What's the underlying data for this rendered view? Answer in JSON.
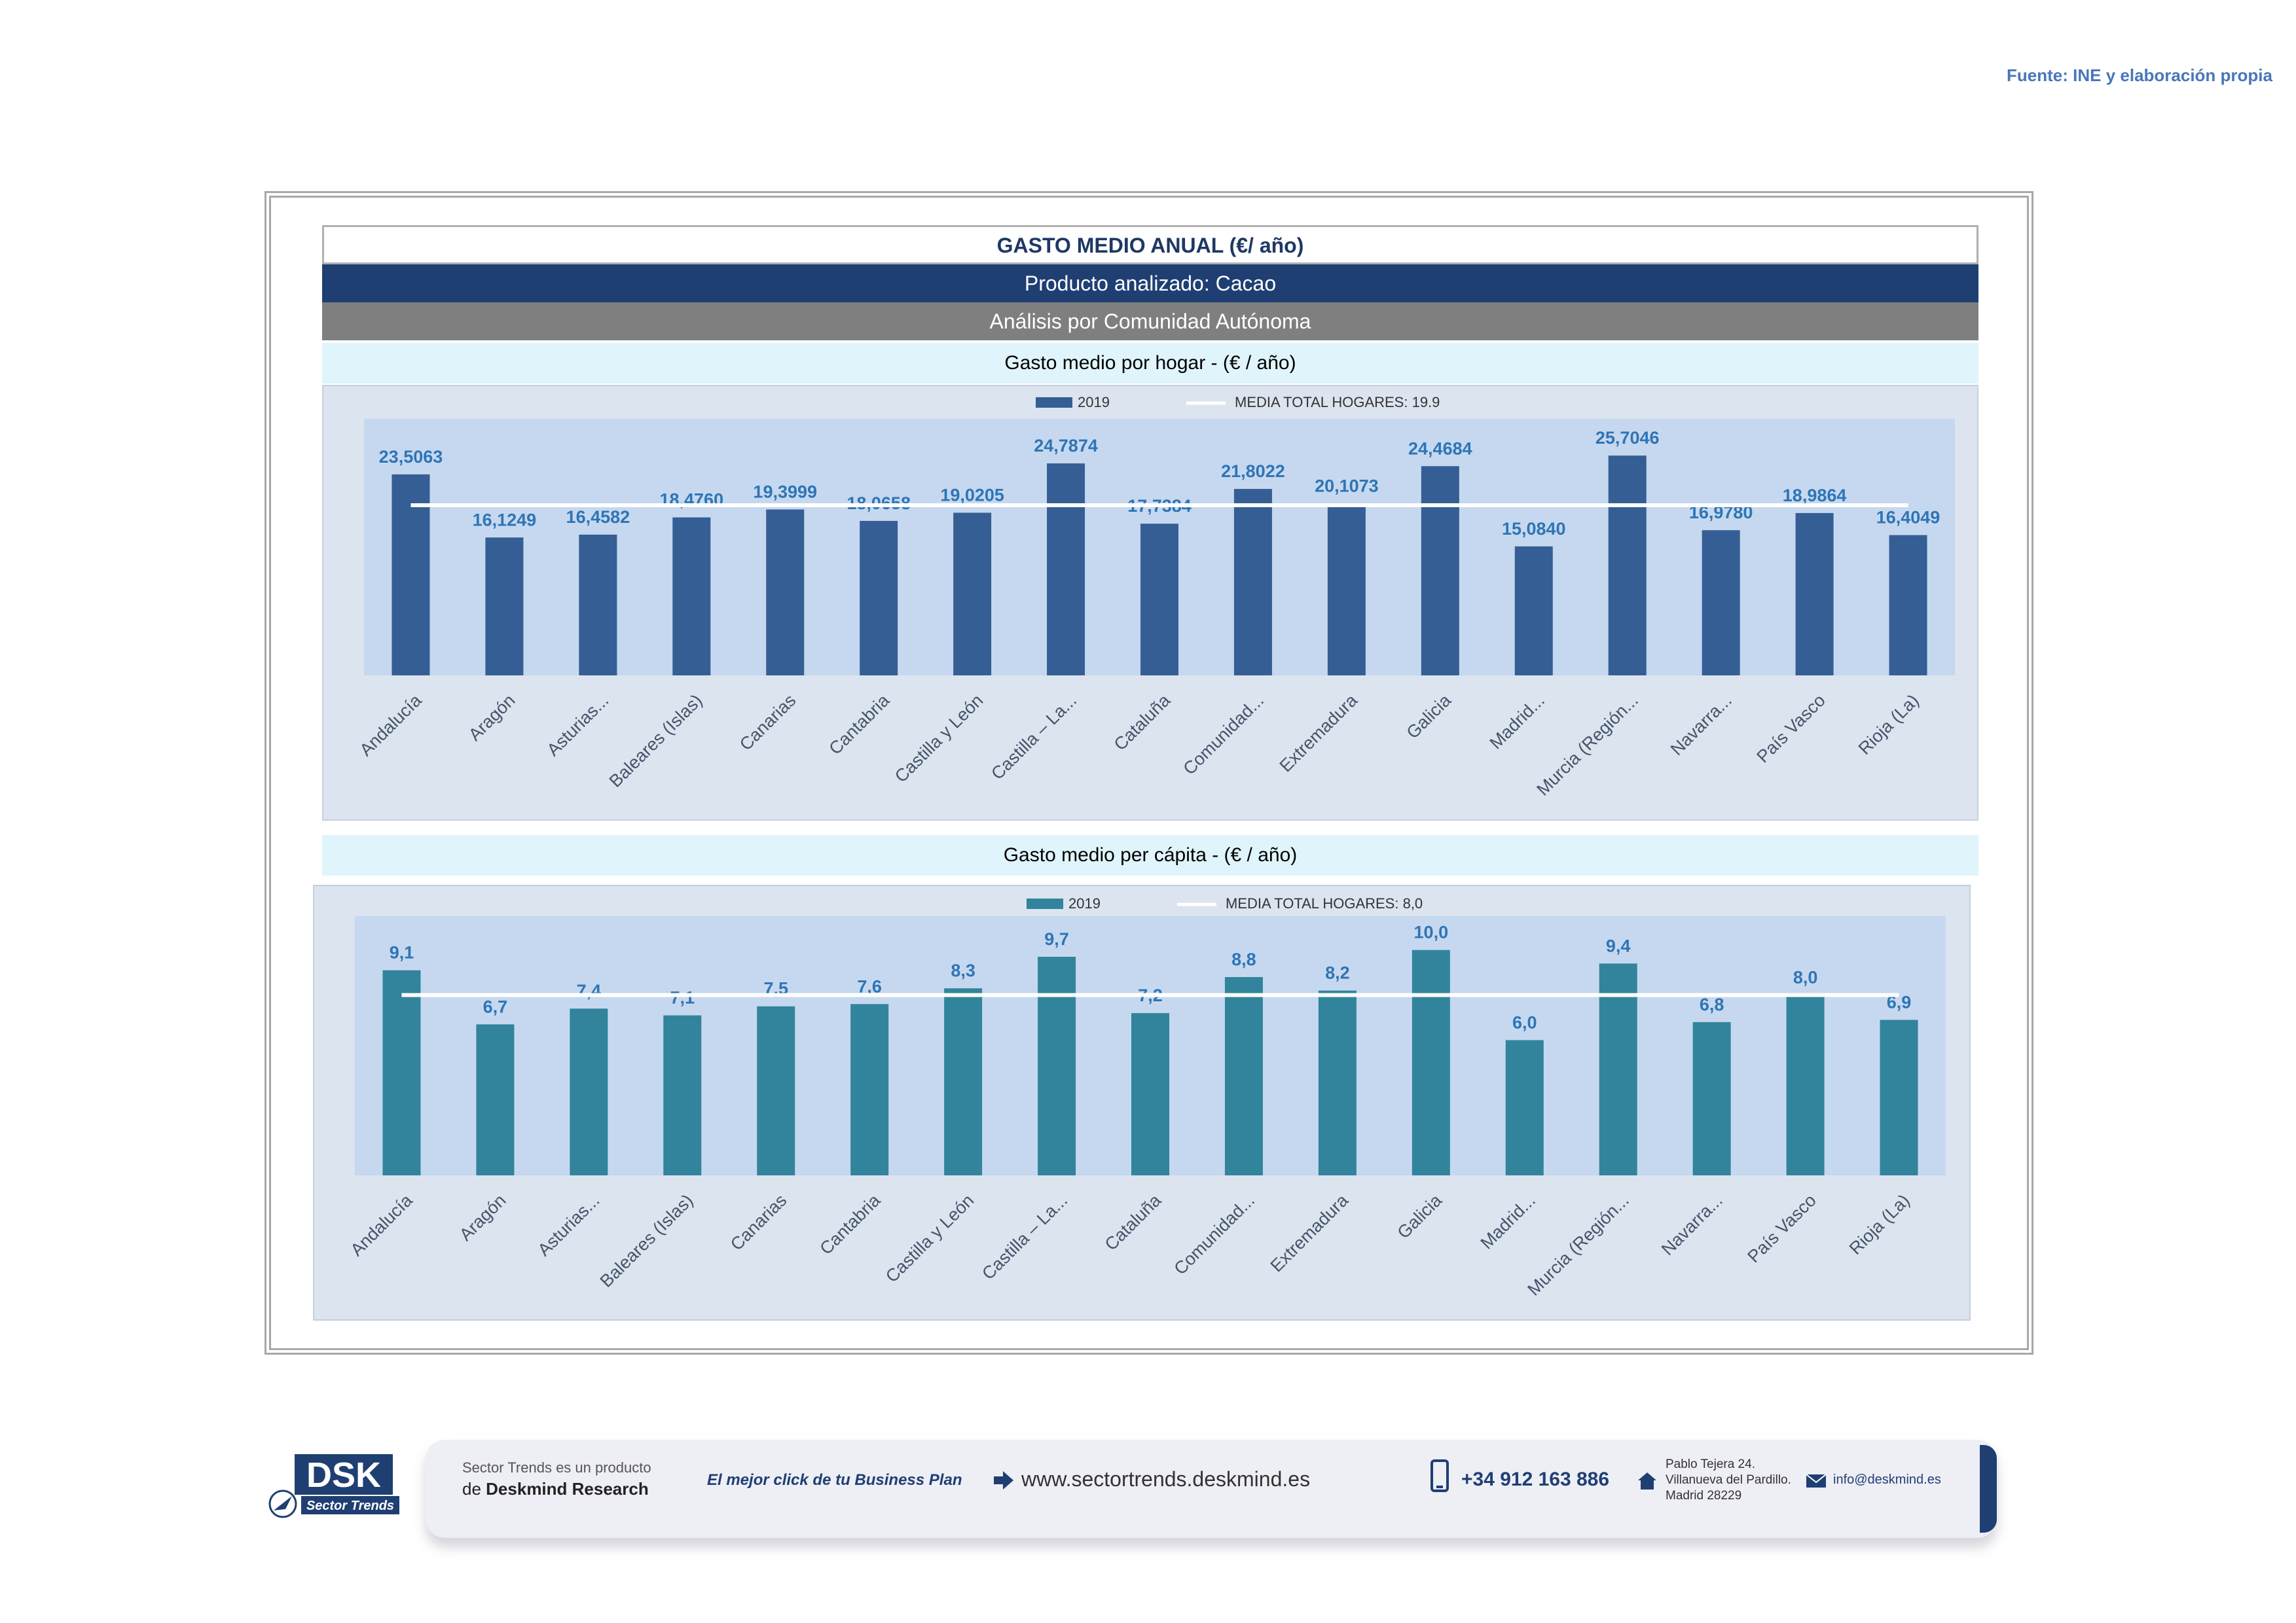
{
  "source": "Fuente: INE y elaboración propia",
  "header": {
    "title": "GASTO MEDIO ANUAL (€/ año)",
    "product": "Producto analizado: Cacao",
    "analysis": "Análisis por Comunidad Autónoma"
  },
  "colors": {
    "bar_hogar": "#355e94",
    "bar_capita": "#31849b",
    "label": "#2e75b6",
    "mean_line": "#ffffff"
  },
  "chart_data": [
    {
      "type": "bar",
      "title": "Gasto medio por hogar -  (€ / año)",
      "categories": [
        "Andalucía",
        "Aragón",
        "Asturias...",
        "Baleares (Islas)",
        "Canarias",
        "Cantabria",
        "Castilla y León",
        "Castilla – La...",
        "Cataluña",
        "Comunidad...",
        "Extremadura",
        "Galicia",
        "Madrid...",
        "Murcia (Región...",
        "Navarra...",
        "País Vasco",
        "Rioja (La)"
      ],
      "series": [
        {
          "name": "2019",
          "values": [
            23.5063,
            16.1249,
            16.4582,
            18.476,
            19.3999,
            18.0658,
            19.0205,
            24.7874,
            17.7384,
            21.8022,
            20.1073,
            24.4684,
            15.084,
            25.7046,
            16.978,
            18.9864,
            16.4049
          ]
        }
      ],
      "data_labels": [
        "23,5063",
        "16,1249",
        "16,4582",
        "18,4760",
        "19,3999",
        "18,0658",
        "19,0205",
        "24,7874",
        "17,7384",
        "21,8022",
        "20,1073",
        "24,4684",
        "15,0840",
        "25,7046",
        "16,9780",
        "18,9864",
        "16,4049"
      ],
      "legend": {
        "series": "2019",
        "mean": "MEDIA TOTAL  HOGARES:",
        "mean_value": "19.9"
      },
      "mean": 19.9,
      "ylim": [
        0,
        30
      ],
      "grid": false,
      "legend_position": "top"
    },
    {
      "type": "bar",
      "title": "Gasto medio per cápita -  (€ / año)",
      "categories": [
        "Andalucía",
        "Aragón",
        "Asturias...",
        "Baleares (Islas)",
        "Canarias",
        "Cantabria",
        "Castilla y León",
        "Castilla – La...",
        "Cataluña",
        "Comunidad...",
        "Extremadura",
        "Galicia",
        "Madrid...",
        "Murcia (Región...",
        "Navarra...",
        "País Vasco",
        "Rioja (La)"
      ],
      "series": [
        {
          "name": "2019",
          "values": [
            9.1,
            6.7,
            7.4,
            7.1,
            7.5,
            7.6,
            8.3,
            9.7,
            7.2,
            8.8,
            8.2,
            10.0,
            6.0,
            9.4,
            6.8,
            8.0,
            6.9
          ]
        }
      ],
      "data_labels": [
        "9,1",
        "6,7",
        "7,4",
        "7,1",
        "7,5",
        "7,6",
        "8,3",
        "9,7",
        "7,2",
        "8,8",
        "8,2",
        "10,0",
        "6,0",
        "9,4",
        "6,8",
        "8,0",
        "6,9"
      ],
      "legend": {
        "series": "2019",
        "mean": "MEDIA TOTAL  HOGARES:",
        "mean_value": "8,0"
      },
      "mean": 8.0,
      "ylim": [
        0,
        11.5
      ],
      "grid": false,
      "legend_position": "top"
    }
  ],
  "footer": {
    "line1": "Sector Trends es un producto",
    "line2_prefix": "de ",
    "line2_brand": "Deskmind Research",
    "slogan": "El mejor click de tu Business Plan",
    "website": "www.sectortrends.deskmind.es",
    "phone": "+34 912 163 886",
    "address1": "Pablo Tejera 24.",
    "address2": "Villanueva del Pardillo.",
    "address3": "Madrid 28229",
    "email": "info@deskmind.es"
  },
  "logo": {
    "main": "DSK",
    "sub": "Sector Trends"
  }
}
